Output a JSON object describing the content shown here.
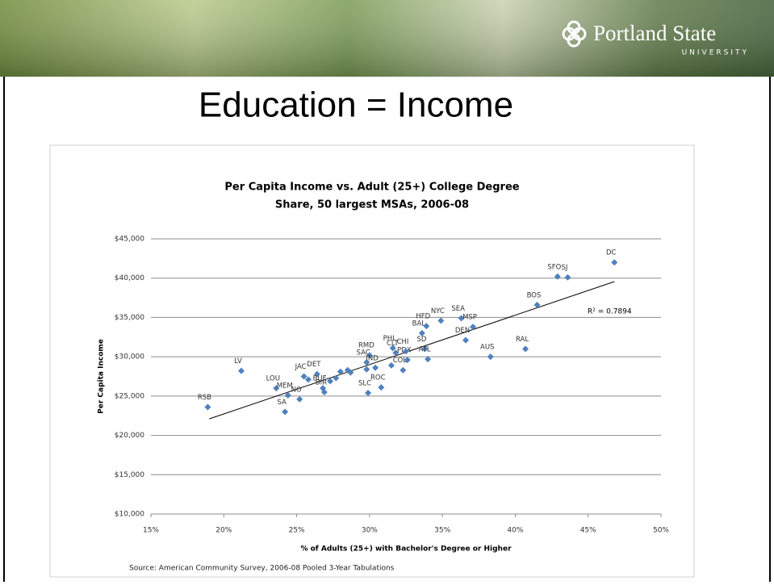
{
  "header": {
    "logo_name": "Portland State",
    "logo_sub": "UNIVERSITY"
  },
  "slide_title": "Education = Income",
  "chart_data": {
    "type": "scatter",
    "title": [
      "Per Capita Income vs. Adult (25+) College Degree",
      "Share, 50 largest MSAs, 2006-08"
    ],
    "x_label": "% of Adults (25+) with Bachelor's Degree or Higher",
    "y_label": "Per Capita Income",
    "source": "Source: American Community Survey, 2006-08 Pooled 3-Year Tabulations",
    "annotation": "R² = 0.7894",
    "color": "#4f81bd",
    "grid": true,
    "xlim": [
      15,
      50
    ],
    "xticks": [
      {
        "value": 15,
        "label": "15%"
      },
      {
        "value": 20,
        "label": "20%"
      },
      {
        "value": 25,
        "label": "25%"
      },
      {
        "value": 30,
        "label": "30%"
      },
      {
        "value": 35,
        "label": "35%"
      },
      {
        "value": 40,
        "label": "40%"
      },
      {
        "value": 45,
        "label": "45%"
      },
      {
        "value": 50,
        "label": "50%"
      }
    ],
    "ylim": [
      10000,
      45000
    ],
    "yticks": [
      {
        "value": 10000,
        "label": "$10,000"
      },
      {
        "value": 15000,
        "label": "$15,000"
      },
      {
        "value": 20000,
        "label": "$20,000"
      },
      {
        "value": 25000,
        "label": "$25,000"
      },
      {
        "value": 30000,
        "label": "$30,000"
      },
      {
        "value": 35000,
        "label": "$35,000"
      },
      {
        "value": 40000,
        "label": "$40,000"
      },
      {
        "value": 45000,
        "label": "$45,000"
      }
    ],
    "x": [
      18.9,
      21.2,
      23.6,
      24.4,
      25.2,
      24.2,
      25.5,
      26.4,
      25.8,
      26.8,
      26.9,
      27.3,
      27.7,
      28.0,
      28.5,
      28.7,
      29.8,
      30.0,
      29.8,
      30.4,
      31.8,
      31.5,
      29.9,
      30.8,
      32.3,
      32.6,
      32.5,
      31.6,
      33.8,
      34.0,
      33.6,
      33.9,
      34.9,
      36.3,
      37.1,
      36.6,
      38.3,
      40.7,
      41.5,
      42.9,
      43.6,
      46.8
    ],
    "y": [
      23600,
      28200,
      26000,
      25100,
      24600,
      23000,
      27500,
      27800,
      27100,
      26000,
      25500,
      26900,
      27300,
      28100,
      28300,
      28000,
      29300,
      30200,
      28400,
      28600,
      30500,
      28900,
      25400,
      26100,
      28300,
      29600,
      30700,
      31100,
      31000,
      29700,
      33000,
      33900,
      34600,
      34900,
      33800,
      32100,
      30000,
      31000,
      36600,
      40200,
      40100,
      42000
    ],
    "point_labels": [
      "RSB",
      "LV",
      "LOU",
      "MEM",
      "NO",
      "SA",
      "JAC",
      "DET",
      null,
      "BUF",
      "BIR",
      null,
      null,
      null,
      null,
      null,
      "SAC",
      "RMD",
      null,
      "IND",
      "CLT",
      null,
      "SLC",
      "ROC",
      "COL",
      "PDX",
      "CHI",
      "PHL",
      "SD",
      "ATL",
      "BAL",
      "HFD",
      "NYC",
      "SEA",
      "MSP",
      "DEN",
      "AUS",
      "RAL",
      "BOS",
      "SFO",
      "SJ",
      "DC"
    ],
    "trendline": {
      "x": [
        19.0,
        46.8
      ],
      "y": [
        22100,
        39560
      ]
    }
  }
}
